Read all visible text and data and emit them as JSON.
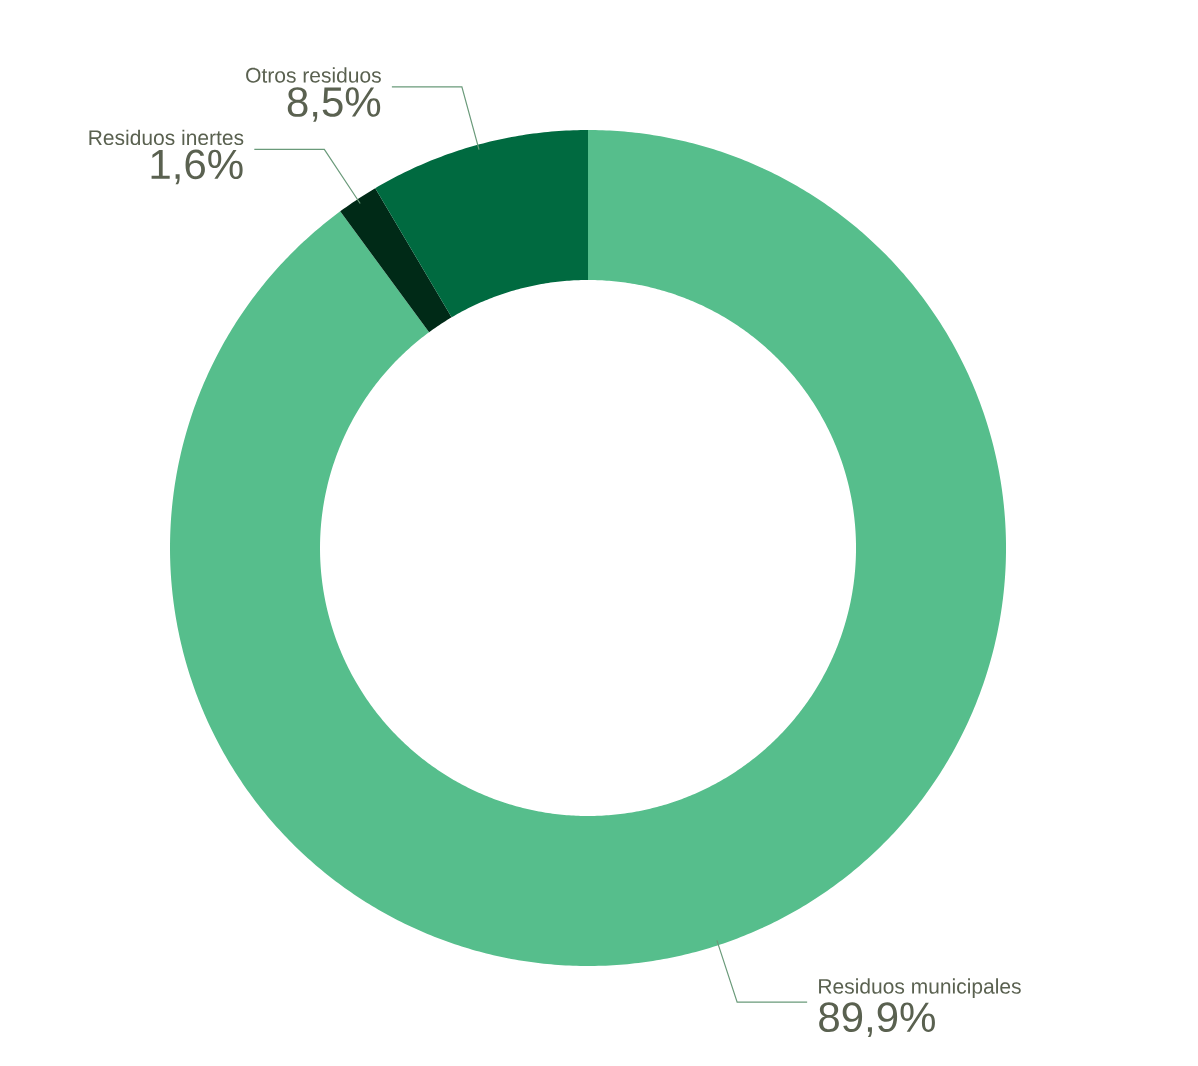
{
  "chart_data": {
    "type": "donut",
    "categories": [
      "Residuos municipales",
      "Residuos inertes",
      "Otros residuos"
    ],
    "values": [
      89.9,
      1.6,
      8.5
    ],
    "colors": [
      "#56be8c",
      "#002a17",
      "#006a40"
    ],
    "value_labels": [
      "89,9%",
      "1,6%",
      "8,5%"
    ]
  }
}
